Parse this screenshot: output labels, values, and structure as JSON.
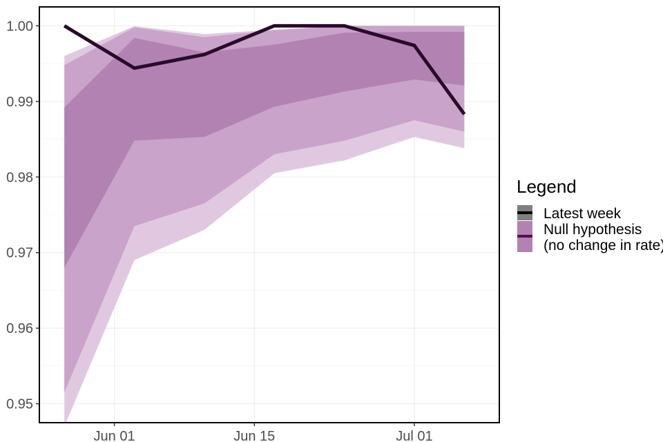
{
  "chart_data": {
    "type": "area",
    "title": "",
    "xlabel": "",
    "ylabel": "",
    "ylim": [
      0.9475,
      1.0025
    ],
    "xlim_days": [
      -7.5,
      38.5
    ],
    "grid": true,
    "x": [
      -5,
      2,
      9,
      16,
      23,
      30,
      35
    ],
    "x_tick_days": [
      0,
      14,
      30
    ],
    "x_tick_labels": [
      "Jun 01",
      "Jun 15",
      "Jul 01"
    ],
    "y_ticks": [
      0.95,
      0.96,
      0.97,
      0.98,
      0.99,
      1.0
    ],
    "y_tick_labels": [
      "0.95",
      "0.96",
      "0.97",
      "0.98",
      "0.99",
      "1.00"
    ],
    "bands": [
      {
        "name": "outer",
        "color": "#e0c9e0",
        "lower": [
          0.947,
          0.969,
          0.973,
          0.9805,
          0.9822,
          0.9853,
          0.9838
        ],
        "upper": [
          0.996,
          0.99995,
          0.9989,
          0.9995,
          1.0,
          1.0,
          1.0
        ]
      },
      {
        "name": "middle",
        "color": "#c9a3c9",
        "lower": [
          0.9515,
          0.9735,
          0.9765,
          0.983,
          0.9848,
          0.9875,
          0.986
        ],
        "upper": [
          0.9948,
          0.9998,
          0.9985,
          0.9994,
          1.0,
          1.0,
          1.0
        ]
      },
      {
        "name": "inner",
        "color": "#b283b2",
        "lower": [
          0.968,
          0.9848,
          0.9853,
          0.9893,
          0.9913,
          0.9929,
          0.9921
        ],
        "upper": [
          0.9892,
          0.9984,
          0.9965,
          0.9975,
          0.9991,
          0.9992,
          0.9992
        ]
      }
    ],
    "series": [
      {
        "name": "Latest week",
        "color": "#2a0a2a",
        "values": [
          1.0,
          0.9944,
          0.9962,
          1.0,
          1.0,
          0.9974,
          0.9883
        ]
      }
    ],
    "legend": {
      "title": "Legend",
      "entries": [
        "Latest week",
        "Null hypothesis",
        "(no change in rate)"
      ],
      "position": "right"
    }
  }
}
